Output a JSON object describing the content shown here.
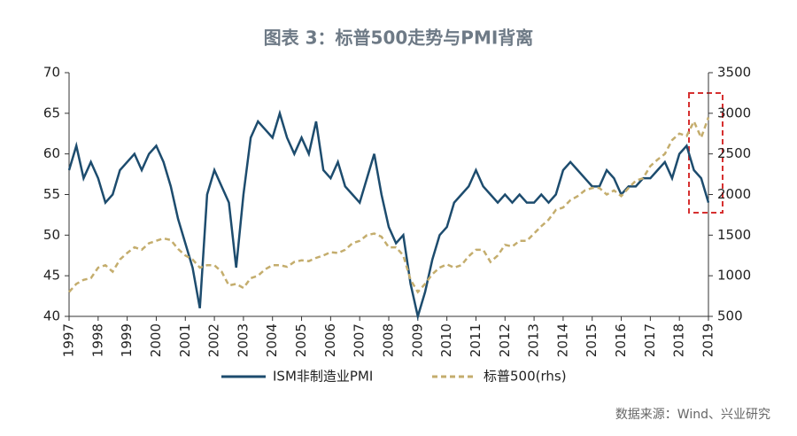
{
  "chart_data": {
    "type": "line",
    "title": "图表 3：标普500走势与PMI背离",
    "source": "数据来源：Wind、兴业研究",
    "x": [
      1997,
      1997.25,
      1997.5,
      1997.75,
      1998,
      1998.25,
      1998.5,
      1998.75,
      1999,
      1999.25,
      1999.5,
      1999.75,
      2000,
      2000.25,
      2000.5,
      2000.75,
      2001,
      2001.25,
      2001.5,
      2001.75,
      2002,
      2002.25,
      2002.5,
      2002.75,
      2003,
      2003.25,
      2003.5,
      2003.75,
      2004,
      2004.25,
      2004.5,
      2004.75,
      2005,
      2005.25,
      2005.5,
      2005.75,
      2006,
      2006.25,
      2006.5,
      2006.75,
      2007,
      2007.25,
      2007.5,
      2007.75,
      2008,
      2008.25,
      2008.5,
      2008.75,
      2009,
      2009.25,
      2009.5,
      2009.75,
      2010,
      2010.25,
      2010.5,
      2010.75,
      2011,
      2011.25,
      2011.5,
      2011.75,
      2012,
      2012.25,
      2012.5,
      2012.75,
      2013,
      2013.25,
      2013.5,
      2013.75,
      2014,
      2014.25,
      2014.5,
      2014.75,
      2015,
      2015.25,
      2015.5,
      2015.75,
      2016,
      2016.25,
      2016.5,
      2016.75,
      2017,
      2017.25,
      2017.5,
      2017.75,
      2018,
      2018.25,
      2018.5,
      2018.75,
      2019
    ],
    "series": [
      {
        "name": "ISM非制造业PMI",
        "color": "#1d4c6e",
        "dash": false,
        "values": [
          58,
          61,
          57,
          59,
          57,
          54,
          55,
          58,
          59,
          60,
          58,
          60,
          61,
          59,
          56,
          52,
          49,
          46,
          41,
          55,
          58,
          56,
          54,
          46,
          55,
          62,
          64,
          63,
          62,
          65,
          62,
          60,
          62,
          60,
          64,
          58,
          57,
          59,
          56,
          55,
          54,
          57,
          60,
          55,
          51,
          49,
          50,
          44,
          40,
          43,
          47,
          50,
          51,
          54,
          55,
          56,
          58,
          56,
          55,
          54,
          55,
          54,
          55,
          54,
          54,
          55,
          54,
          55,
          58,
          59,
          58,
          57,
          56,
          56,
          58,
          57,
          55,
          56,
          56,
          57,
          57,
          58,
          59,
          57,
          60,
          61,
          58,
          57,
          54
        ]
      },
      {
        "name": "标普500(rhs)",
        "color": "#c4ad6d",
        "dash": true,
        "axis": "y2",
        "values": [
          800,
          900,
          950,
          970,
          1100,
          1130,
          1050,
          1200,
          1280,
          1350,
          1320,
          1400,
          1430,
          1460,
          1440,
          1330,
          1250,
          1200,
          1100,
          1130,
          1130,
          1050,
          880,
          900,
          850,
          970,
          1000,
          1080,
          1130,
          1130,
          1110,
          1170,
          1190,
          1180,
          1220,
          1250,
          1290,
          1280,
          1320,
          1400,
          1430,
          1500,
          1520,
          1480,
          1350,
          1350,
          1250,
          950,
          800,
          900,
          1020,
          1100,
          1140,
          1100,
          1130,
          1240,
          1320,
          1320,
          1170,
          1250,
          1380,
          1360,
          1430,
          1430,
          1520,
          1610,
          1690,
          1810,
          1840,
          1930,
          1980,
          2050,
          2080,
          2080,
          2000,
          2050,
          1980,
          2080,
          2170,
          2200,
          2350,
          2430,
          2500,
          2670,
          2750,
          2720,
          2900,
          2700,
          2950
        ]
      }
    ],
    "xlim": [
      1997,
      2019
    ],
    "xticks": [
      1997,
      1998,
      1999,
      2000,
      2001,
      2002,
      2003,
      2004,
      2005,
      2006,
      2007,
      2008,
      2009,
      2010,
      2011,
      2012,
      2013,
      2014,
      2015,
      2016,
      2017,
      2018,
      2019
    ],
    "ylim": [
      40,
      70
    ],
    "yticks": [
      40,
      45,
      50,
      55,
      60,
      65,
      70
    ],
    "y2lim": [
      500,
      3500
    ],
    "y2ticks": [
      500,
      1000,
      1500,
      2000,
      2500,
      3000,
      3500
    ],
    "grid": false
  }
}
